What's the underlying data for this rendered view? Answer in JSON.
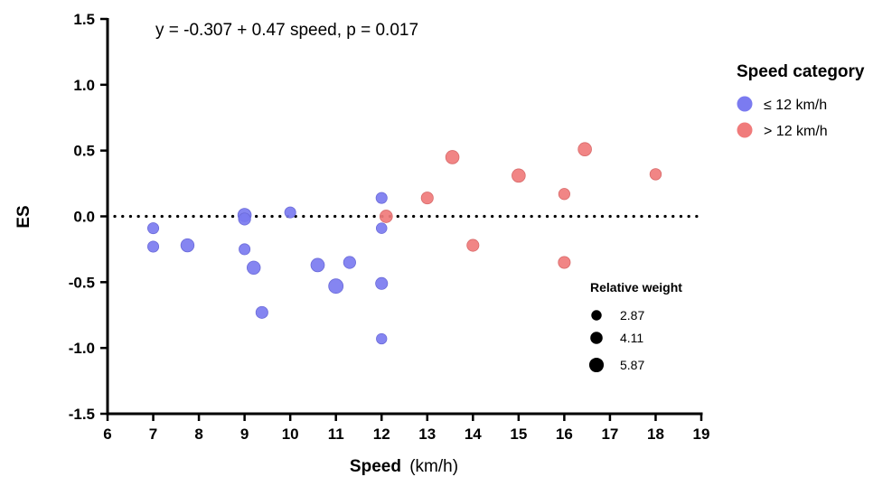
{
  "chart_data": {
    "type": "scatter",
    "annotation": "y = -0.307 + 0.47 speed, p = 0.017",
    "xlabel": "Speed",
    "xlabel_unit": "(km/h)",
    "ylabel": "ES",
    "xlim": [
      6,
      19
    ],
    "ylim": [
      -1.5,
      1.5
    ],
    "x_ticks": [
      6,
      7,
      8,
      9,
      10,
      11,
      12,
      13,
      14,
      15,
      16,
      17,
      18,
      19
    ],
    "y_ticks": [
      1.5,
      1.0,
      0.5,
      0.0,
      -0.5,
      -1.0,
      -1.5
    ],
    "y_tick_labels": [
      "1.5",
      "1.0",
      "0.5",
      "0.0",
      "-0.5",
      "-1.0",
      "-1.5"
    ],
    "reference_line": {
      "y": 0,
      "style": "dotted"
    },
    "legend": {
      "title": "Speed category",
      "position": "right",
      "entries": [
        {
          "label": "≤ 12 km/h",
          "color": "#7b7bf0"
        },
        {
          "label": "> 12 km/h",
          "color": "#f07b7b"
        }
      ]
    },
    "size_legend": {
      "title": "Relative weight",
      "entries": [
        {
          "label": "2.87",
          "value": 2.87
        },
        {
          "label": "4.11",
          "value": 4.11
        },
        {
          "label": "5.87",
          "value": 5.87
        }
      ]
    },
    "series": [
      {
        "name": "≤ 12 km/h",
        "color": "#7b7bf0",
        "points": [
          {
            "x": 7.0,
            "y": -0.09,
            "w": 3.3
          },
          {
            "x": 7.0,
            "y": -0.23,
            "w": 3.3
          },
          {
            "x": 7.75,
            "y": -0.22,
            "w": 4.8
          },
          {
            "x": 9.0,
            "y": 0.01,
            "w": 4.9
          },
          {
            "x": 9.0,
            "y": -0.02,
            "w": 4.0
          },
          {
            "x": 9.0,
            "y": -0.25,
            "w": 3.3
          },
          {
            "x": 9.2,
            "y": -0.39,
            "w": 4.8
          },
          {
            "x": 9.38,
            "y": -0.73,
            "w": 3.9
          },
          {
            "x": 10.0,
            "y": 0.03,
            "w": 3.3
          },
          {
            "x": 10.6,
            "y": -0.37,
            "w": 5.0
          },
          {
            "x": 11.0,
            "y": -0.53,
            "w": 5.8
          },
          {
            "x": 11.3,
            "y": -0.35,
            "w": 4.0
          },
          {
            "x": 12.0,
            "y": 0.14,
            "w": 3.3
          },
          {
            "x": 12.0,
            "y": -0.09,
            "w": 3.0
          },
          {
            "x": 12.0,
            "y": -0.51,
            "w": 3.9
          },
          {
            "x": 12.0,
            "y": -0.93,
            "w": 2.9
          }
        ]
      },
      {
        "name": "> 12 km/h",
        "color": "#f07b7b",
        "points": [
          {
            "x": 12.1,
            "y": 0.0,
            "w": 4.3
          },
          {
            "x": 13.0,
            "y": 0.14,
            "w": 3.9
          },
          {
            "x": 13.55,
            "y": 0.45,
            "w": 4.9
          },
          {
            "x": 14.0,
            "y": -0.22,
            "w": 3.9
          },
          {
            "x": 15.0,
            "y": 0.31,
            "w": 4.9
          },
          {
            "x": 16.0,
            "y": 0.17,
            "w": 3.4
          },
          {
            "x": 16.0,
            "y": -0.35,
            "w": 3.9
          },
          {
            "x": 16.45,
            "y": 0.51,
            "w": 4.9
          },
          {
            "x": 18.0,
            "y": 0.32,
            "w": 3.5
          }
        ]
      }
    ]
  }
}
